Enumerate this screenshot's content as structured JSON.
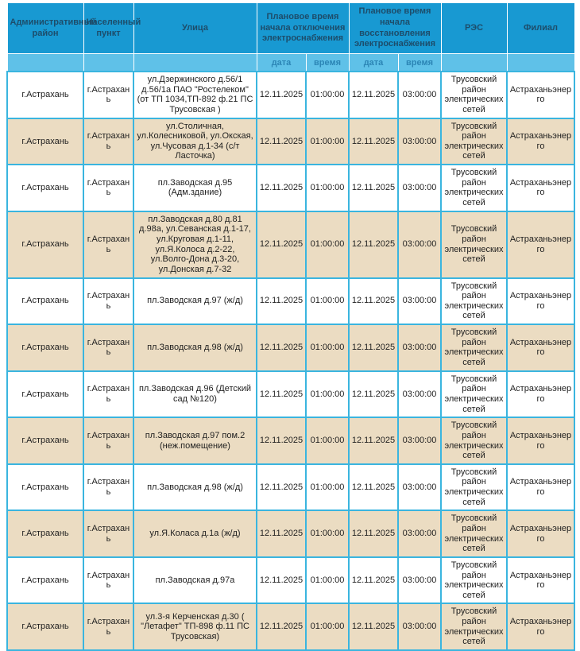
{
  "colors": {
    "header_bg": "#1899D2",
    "subheader_bg": "#5FC1E8",
    "row_alt_bg": "#EBDCC2",
    "border": "#3AB5DF",
    "header_text": "#1D4D6B",
    "subheader_text": "#2B85B5",
    "cell_text": "#1F1F1F"
  },
  "table": {
    "headers": {
      "admin_district": "Административный район",
      "settlement": "Населенный пункт",
      "street": "Улица",
      "outage_group": "Плановое время начала отключения электроснабжения",
      "restore_group": "Плановое время начала восстановления электроснабжения",
      "res": "РЭС",
      "branch": "Филиал",
      "date": "дата",
      "time": "время"
    },
    "rows": [
      {
        "admin_district": "г.Астрахань",
        "settlement": "г.Астрахань",
        "street": "ул.Дзержинского д.56/1 д.56/1а ПАО \"Ростелеком\" (от ТП 1034,ТП-892 ф.21 ПС Трусовская )",
        "off_date": "12.11.2025",
        "off_time": "01:00:00",
        "on_date": "12.11.2025",
        "on_time": "03:00:00",
        "res": "Трусовский район электрических сетей",
        "branch": "Астраханьэнерго"
      },
      {
        "admin_district": "г.Астрахань",
        "settlement": "г.Астрахань",
        "street": "ул.Столичная, ул.Колесниковой, ул.Окская, ул.Чусовая д.1-34 (с/т Ласточка)",
        "off_date": "12.11.2025",
        "off_time": "01:00:00",
        "on_date": "12.11.2025",
        "on_time": "03:00:00",
        "res": "Трусовский район электрических сетей",
        "branch": "Астраханьэнерго"
      },
      {
        "admin_district": "г.Астрахань",
        "settlement": "г.Астрахань",
        "street": "пл.Заводская д.95 (Адм.здание)",
        "off_date": "12.11.2025",
        "off_time": "01:00:00",
        "on_date": "12.11.2025",
        "on_time": "03:00:00",
        "res": "Трусовский район электрических сетей",
        "branch": "Астраханьэнерго"
      },
      {
        "admin_district": "г.Астрахань",
        "settlement": "г.Астрахань",
        "street": "пл.Заводская д.80 д.81 д.98а, ул.Севанская д.1-17, ул.Круговая д.1-11, ул.Я.Колоса д.2-22, ул.Волго-Дона д.3-20, ул.Донская д.7-32",
        "off_date": "12.11.2025",
        "off_time": "01:00:00",
        "on_date": "12.11.2025",
        "on_time": "03:00:00",
        "res": "Трусовский район электрических сетей",
        "branch": "Астраханьэнерго"
      },
      {
        "admin_district": "г.Астрахань",
        "settlement": "г.Астрахань",
        "street": "пл.Заводская д.97 (ж/д)",
        "off_date": "12.11.2025",
        "off_time": "01:00:00",
        "on_date": "12.11.2025",
        "on_time": "03:00:00",
        "res": "Трусовский район электрических сетей",
        "branch": "Астраханьэнерго"
      },
      {
        "admin_district": "г.Астрахань",
        "settlement": "г.Астрахань",
        "street": "пл.Заводская д.98 (ж/д)",
        "off_date": "12.11.2025",
        "off_time": "01:00:00",
        "on_date": "12.11.2025",
        "on_time": "03:00:00",
        "res": "Трусовский район электрических сетей",
        "branch": "Астраханьэнерго"
      },
      {
        "admin_district": "г.Астрахань",
        "settlement": "г.Астрахань",
        "street": "пл.Заводская д.96 (Детский сад №120)",
        "off_date": "12.11.2025",
        "off_time": "01:00:00",
        "on_date": "12.11.2025",
        "on_time": "03:00:00",
        "res": "Трусовский район электрических сетей",
        "branch": "Астраханьэнерго"
      },
      {
        "admin_district": "г.Астрахань",
        "settlement": "г.Астрахань",
        "street": "пл.Заводская д.97 пом.2 (неж.помещение)",
        "off_date": "12.11.2025",
        "off_time": "01:00:00",
        "on_date": "12.11.2025",
        "on_time": "03:00:00",
        "res": "Трусовский район электрических сетей",
        "branch": "Астраханьэнерго"
      },
      {
        "admin_district": "г.Астрахань",
        "settlement": "г.Астрахань",
        "street": "пл.Заводская д.98 (ж/д)",
        "off_date": "12.11.2025",
        "off_time": "01:00:00",
        "on_date": "12.11.2025",
        "on_time": "03:00:00",
        "res": "Трусовский район электрических сетей",
        "branch": "Астраханьэнерго"
      },
      {
        "admin_district": "г.Астрахань",
        "settlement": "г.Астрахань",
        "street": "ул.Я.Коласа д.1а (ж/д)",
        "off_date": "12.11.2025",
        "off_time": "01:00:00",
        "on_date": "12.11.2025",
        "on_time": "03:00:00",
        "res": "Трусовский район электрических сетей",
        "branch": "Астраханьэнерго"
      },
      {
        "admin_district": "г.Астрахань",
        "settlement": "г.Астрахань",
        "street": "пл.Заводская д.97а",
        "off_date": "12.11.2025",
        "off_time": "01:00:00",
        "on_date": "12.11.2025",
        "on_time": "03:00:00",
        "res": "Трусовский район электрических сетей",
        "branch": "Астраханьэнерго"
      },
      {
        "admin_district": "г.Астрахань",
        "settlement": "г.Астрахань",
        "street": "ул.3-я Керченская д.30 ( \"Летафет\" ТП-898 ф.11 ПС Трусовская)",
        "off_date": "12.11.2025",
        "off_time": "01:00:00",
        "on_date": "12.11.2025",
        "on_time": "03:00:00",
        "res": "Трусовский район электрических сетей",
        "branch": "Астраханьэнерго"
      }
    ]
  }
}
